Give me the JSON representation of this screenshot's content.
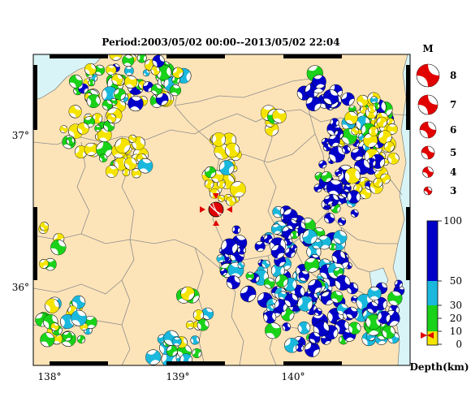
{
  "title": "Period:2003/05/02 00:00--2013/05/02 22:04",
  "axes": {
    "x_ticks": [
      "138°",
      "139°",
      "140°"
    ],
    "y_ticks": [
      "37°",
      "36°"
    ]
  },
  "magnitude_legend": {
    "label": "M",
    "values": [
      "8",
      "7",
      "6",
      "5",
      "4",
      "3"
    ]
  },
  "depth_legend": {
    "ticks": [
      "100",
      "50",
      "30",
      "20",
      "10",
      "0"
    ],
    "unit_label": "Depth(km)",
    "colors": [
      "#f5e400",
      "#19d219",
      "#1ab8dc",
      "#0000c8"
    ]
  },
  "colors": {
    "land": "#fde4b8",
    "sea": "#d8f4f6",
    "border": "#8c8c8c",
    "main_event": "#e00000"
  },
  "main_event": {
    "color": "red",
    "marker": "triangle-markers"
  }
}
